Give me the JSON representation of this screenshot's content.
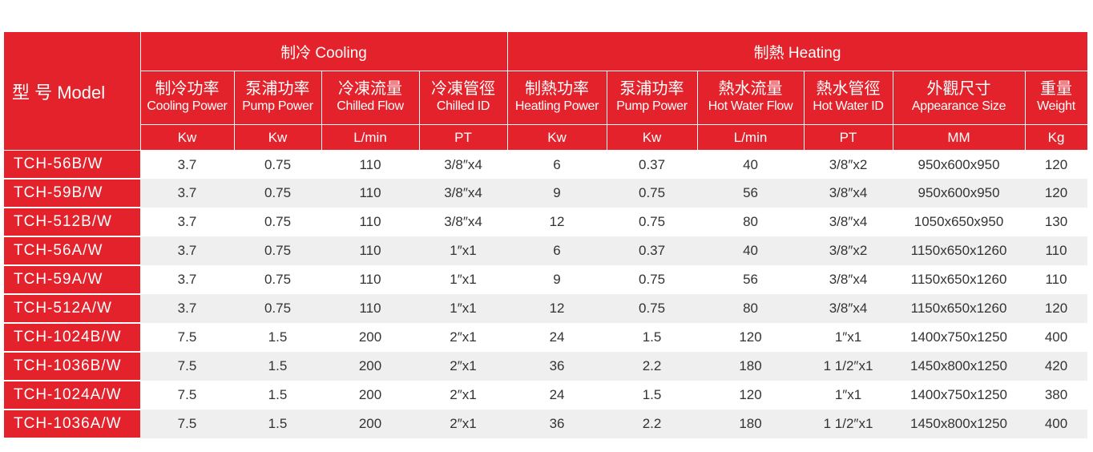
{
  "table": {
    "model_header": "型 号 Model",
    "groups": [
      {
        "label": "制冷 Cooling",
        "span": 4
      },
      {
        "label": "制熱 Heating",
        "span": 6
      }
    ],
    "columns": [
      {
        "zh": "制冷功率",
        "en": "Cooling Power",
        "unit": "Kw"
      },
      {
        "zh": "泵浦功率",
        "en": "Pump Power",
        "unit": "Kw"
      },
      {
        "zh": "冷凍流量",
        "en": "Chilled Flow",
        "unit": "L/min"
      },
      {
        "zh": "冷凍管徑",
        "en": "Chilled ID",
        "unit": "PT"
      },
      {
        "zh": "制熱功率",
        "en": "Heatling Power",
        "unit": "Kw"
      },
      {
        "zh": "泵浦功率",
        "en": "Pump Power",
        "unit": "Kw"
      },
      {
        "zh": "熱水流量",
        "en": "Hot Water Flow",
        "unit": "L/min"
      },
      {
        "zh": "熱水管徑",
        "en": "Hot Water ID",
        "unit": "PT"
      },
      {
        "zh": "外觀尺寸",
        "en": "Appearance Size",
        "unit": "MM"
      },
      {
        "zh": "重量",
        "en": "Weight",
        "unit": "Kg"
      }
    ],
    "rows": [
      [
        "TCH-56B/W",
        "3.7",
        "0.75",
        "110",
        "3/8″x4",
        "6",
        "0.37",
        "40",
        "3/8″x2",
        "950x600x950",
        "120"
      ],
      [
        "TCH-59B/W",
        "3.7",
        "0.75",
        "110",
        "3/8″x4",
        "9",
        "0.75",
        "56",
        "3/8″x4",
        "950x600x950",
        "120"
      ],
      [
        "TCH-512B/W",
        "3.7",
        "0.75",
        "110",
        "3/8″x4",
        "12",
        "0.75",
        "80",
        "3/8″x4",
        "1050x650x950",
        "130"
      ],
      [
        "TCH-56A/W",
        "3.7",
        "0.75",
        "110",
        "1″x1",
        "6",
        "0.37",
        "40",
        "3/8″x2",
        "1150x650x1260",
        "110"
      ],
      [
        "TCH-59A/W",
        "3.7",
        "0.75",
        "110",
        "1″x1",
        "9",
        "0.75",
        "56",
        "3/8″x4",
        "1150x650x1260",
        "110"
      ],
      [
        "TCH-512A/W",
        "3.7",
        "0.75",
        "110",
        "1″x1",
        "12",
        "0.75",
        "80",
        "3/8″x4",
        "1150x650x1260",
        "120"
      ],
      [
        "TCH-1024B/W",
        "7.5",
        "1.5",
        "200",
        "2″x1",
        "24",
        "1.5",
        "120",
        "1″x1",
        "1400x750x1250",
        "400"
      ],
      [
        "TCH-1036B/W",
        "7.5",
        "1.5",
        "200",
        "2″x1",
        "36",
        "2.2",
        "180",
        "1 1/2″x1",
        "1450x800x1250",
        "420"
      ],
      [
        "TCH-1024A/W",
        "7.5",
        "1.5",
        "200",
        "2″x1",
        "24",
        "1.5",
        "120",
        "1″x1",
        "1400x750x1250",
        "380"
      ],
      [
        "TCH-1036A/W",
        "7.5",
        "1.5",
        "200",
        "2″x1",
        "36",
        "2.2",
        "180",
        "1 1/2″x1",
        "1450x800x1250",
        "400"
      ]
    ]
  }
}
